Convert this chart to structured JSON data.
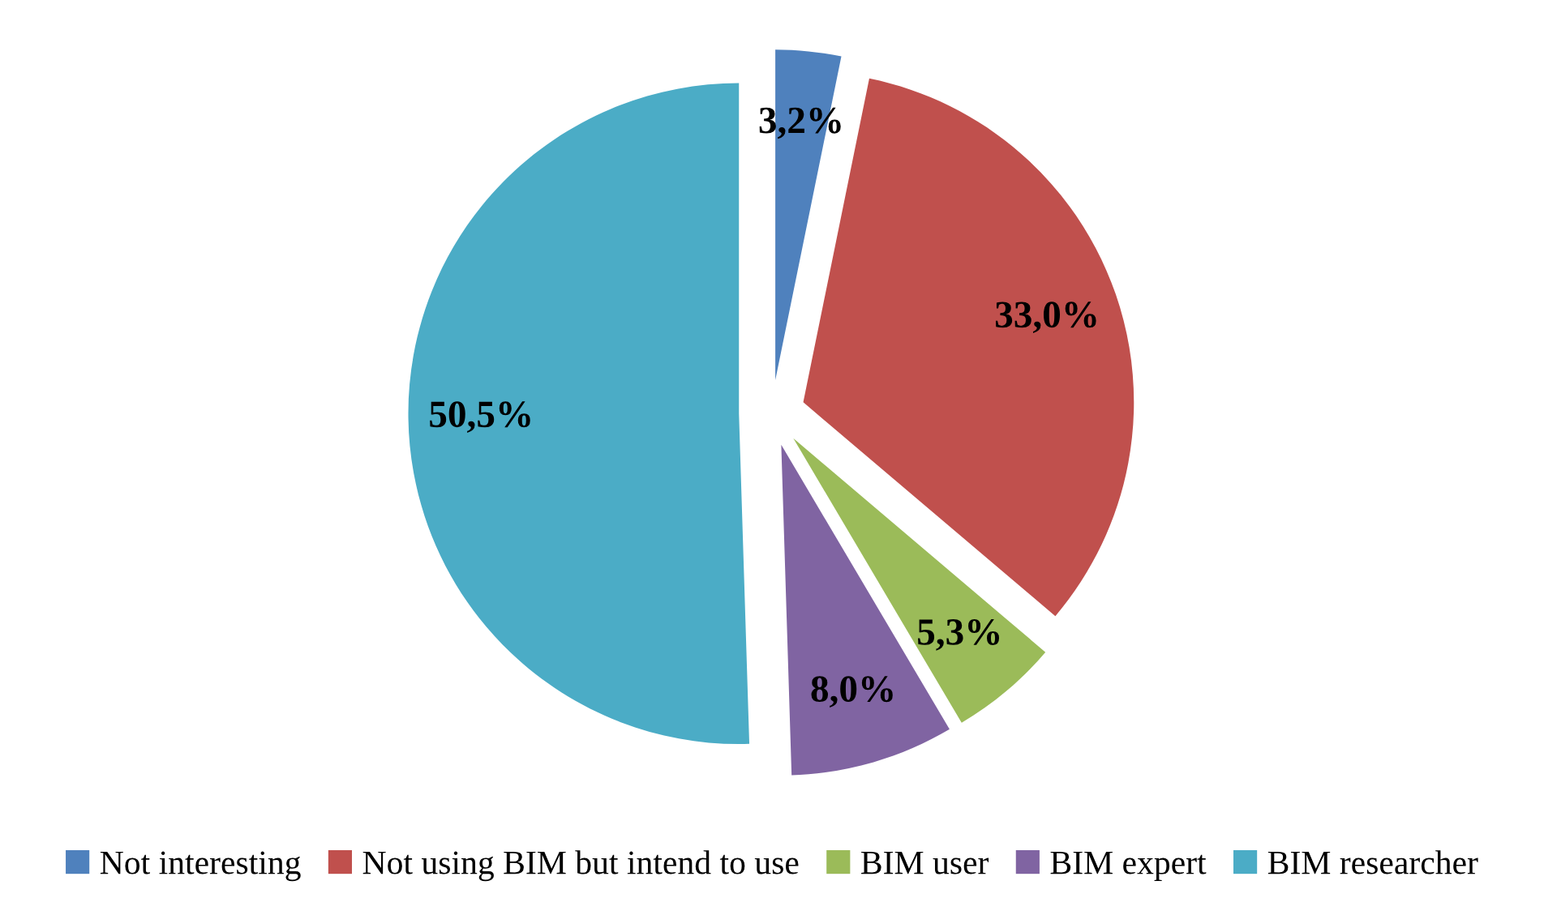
{
  "chart_data": {
    "type": "pie",
    "categories": [
      "Not interesting",
      "Not using BIM but intend to use",
      "BIM user",
      "BIM expert",
      "BIM researcher"
    ],
    "values": [
      3.2,
      33.0,
      5.3,
      8.0,
      50.5
    ],
    "value_labels": [
      "3,2%",
      "33,0%",
      "5,3%",
      "8,0%",
      "50,5%"
    ],
    "colors": [
      "#4f81bd",
      "#c0504d",
      "#9bbb59",
      "#8064a2",
      "#4bacc6"
    ],
    "legend": "bottom"
  }
}
